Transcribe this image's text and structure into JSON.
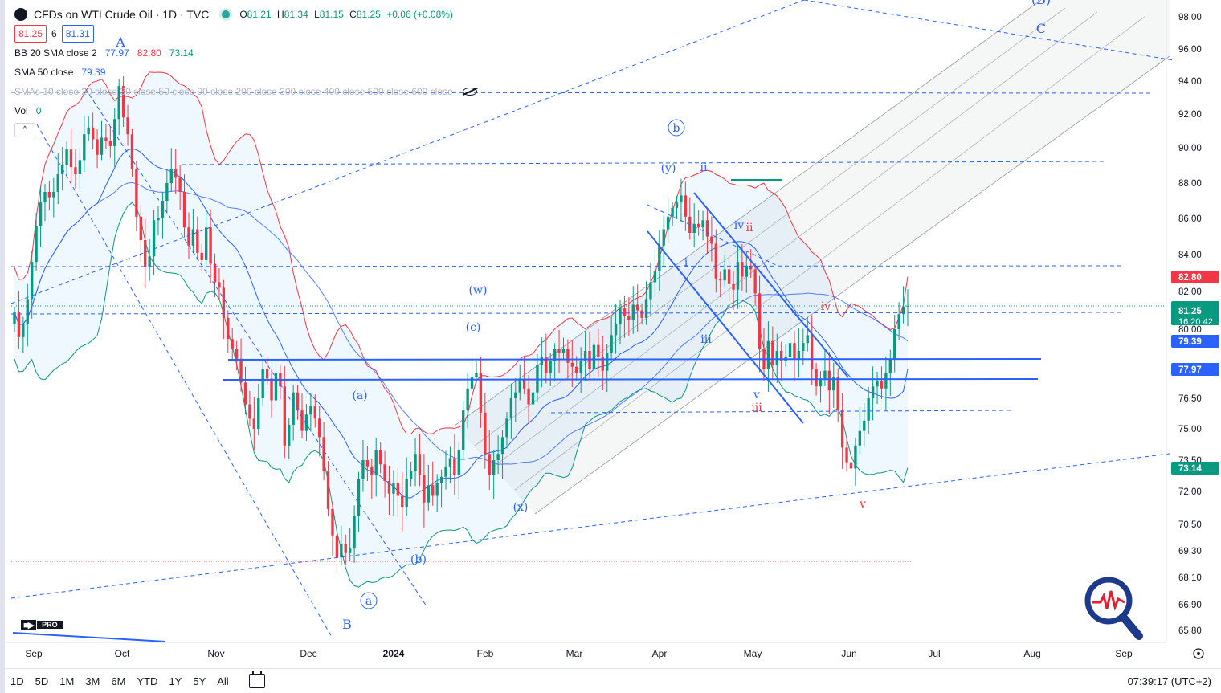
{
  "header": {
    "symbol_title": "CFDs on WTI Crude Oil · 1D · TVC",
    "ohlc": {
      "o_label": "O",
      "o": "81.21",
      "h_label": "H",
      "h": "81.34",
      "l_label": "L",
      "l": "81.15",
      "c_label": "C",
      "c": "81.25",
      "change": "+0.06 (+0.08%)"
    },
    "sell_price": "81.25",
    "spread": "6",
    "buy_price": "81.31"
  },
  "indicators": {
    "bb": {
      "label": "BB 20 SMA close 2",
      "basis": "77.97",
      "upper": "82.80",
      "lower": "73.14"
    },
    "sma50": {
      "label": "SMA 50 close",
      "value": "79.39"
    },
    "smas": {
      "label": "SMAs 10 close 20 close 30 close 50 close 90 close 200 close 300 close 400 close 500 close 600 close"
    },
    "vol": {
      "label": "Vol",
      "value": "0"
    }
  },
  "price_axis": {
    "ticks": [
      "98.00",
      "96.00",
      "94.00",
      "92.00",
      "90.00",
      "88.00",
      "86.00",
      "84.00",
      "82.00",
      "80.00",
      "76.50",
      "75.00",
      "73.50",
      "72.00",
      "70.50",
      "69.30",
      "68.10",
      "66.90",
      "65.80"
    ],
    "badges": [
      {
        "value": "82.80",
        "color": "#f23645"
      },
      {
        "value": "81.25",
        "sub": "16:20:42",
        "color": "#089981"
      },
      {
        "value": "79.39",
        "color": "#2962ff"
      },
      {
        "value": "77.97",
        "color": "#2962ff"
      },
      {
        "value": "73.14",
        "color": "#089981"
      }
    ]
  },
  "time_axis": {
    "labels": [
      "Sep",
      "Oct",
      "Nov",
      "Dec",
      "2024",
      "Feb",
      "Mar",
      "Apr",
      "May",
      "Jun",
      "Jul",
      "Aug",
      "Sep"
    ]
  },
  "wave_labels": [
    {
      "text": "A",
      "color": "#2962ff"
    },
    {
      "text": "B",
      "color": "#2962ff"
    },
    {
      "text": "C",
      "color": "#2962ff"
    },
    {
      "text": "(B)",
      "color": "#2962ff"
    },
    {
      "text": "a",
      "color": "#2962ff",
      "circled": true
    },
    {
      "text": "b",
      "color": "#2962ff",
      "circled": true
    },
    {
      "text": "(a)",
      "color": "#2962ff"
    },
    {
      "text": "(b)",
      "color": "#2962ff"
    },
    {
      "text": "(c)",
      "color": "#2962ff"
    },
    {
      "text": "(w)",
      "color": "#2962ff"
    },
    {
      "text": "(x)",
      "color": "#2962ff"
    },
    {
      "text": "(y)",
      "color": "#2962ff"
    },
    {
      "text": "i",
      "color": "#2962ff"
    },
    {
      "text": "ii",
      "color": "#2962ff"
    },
    {
      "text": "iii",
      "color": "#2962ff"
    },
    {
      "text": "iv",
      "color": "#2962ff"
    },
    {
      "text": "v",
      "color": "#2962ff"
    },
    {
      "text": "ii",
      "color": "#f23645"
    },
    {
      "text": "iii",
      "color": "#f23645"
    },
    {
      "text": "iv",
      "color": "#f23645"
    },
    {
      "text": "v",
      "color": "#f23645"
    }
  ],
  "chart_data": {
    "type": "candlestick",
    "x_range": [
      "2023-08-22",
      "2024-06-21"
    ],
    "ylim": [
      65.8,
      98.0
    ],
    "up_color": "#089981",
    "down_color": "#f23645",
    "closes": [
      80.9,
      79.6,
      80.3,
      81.6,
      83.6,
      85.6,
      86.9,
      87.5,
      87.2,
      87.5,
      88.5,
      89.0,
      89.9,
      88.9,
      88.5,
      89.3,
      90.8,
      91.2,
      90.5,
      89.6,
      90.6,
      90.4,
      90.1,
      91.7,
      93.7,
      91.8,
      90.8,
      88.8,
      86.1,
      84.8,
      83.3,
      83.9,
      85.9,
      86.0,
      87.0,
      88.0,
      88.8,
      88.3,
      87.5,
      85.5,
      84.5,
      85.4,
      84.1,
      83.7,
      85.5,
      83.5,
      82.5,
      82.2,
      80.6,
      79.5,
      79.0,
      78.5,
      77.3,
      76.2,
      75.5,
      75.0,
      76.5,
      78.0,
      77.5,
      76.4,
      77.8,
      77.1,
      74.2,
      75.2,
      76.8,
      75.9,
      74.9,
      75.7,
      76.1,
      75.5,
      74.6,
      73.0,
      71.2,
      70.0,
      69.0,
      69.6,
      69.2,
      69.4,
      70.9,
      72.6,
      73.5,
      73.2,
      72.8,
      74.0,
      73.3,
      72.5,
      71.9,
      72.4,
      71.8,
      71.3,
      72.6,
      73.0,
      73.8,
      72.8,
      71.5,
      72.3,
      71.8,
      72.4,
      72.7,
      73.2,
      73.6,
      72.8,
      74.0,
      75.9,
      77.0,
      77.6,
      77.8,
      75.8,
      73.8,
      72.8,
      73.5,
      73.8,
      74.6,
      75.5,
      76.5,
      76.8,
      77.5,
      77.0,
      76.2,
      76.8,
      78.2,
      78.6,
      77.8,
      78.4,
      79.0,
      78.8,
      79.0,
      78.3,
      78.1,
      77.8,
      78.4,
      78.9,
      78.0,
      79.2,
      78.6,
      77.9,
      78.8,
      79.7,
      80.3,
      81.1,
      80.7,
      80.5,
      81.3,
      81.0,
      80.6,
      81.6,
      82.5,
      83.1,
      84.5,
      85.4,
      86.1,
      86.6,
      86.9,
      87.3,
      86.1,
      85.2,
      85.7,
      85.5,
      85.9,
      85.0,
      84.6,
      82.7,
      82.6,
      83.2,
      82.4,
      82.1,
      83.6,
      82.8,
      83.4,
      83.2,
      81.9,
      79.0,
      78.0,
      79.4,
      78.2,
      78.9,
      78.4,
      78.6,
      79.3,
      78.5,
      78.9,
      79.3,
      79.7,
      78.0,
      77.1,
      77.5,
      77.9,
      76.9,
      77.6,
      75.9,
      74.1,
      73.4,
      73.1,
      74.2,
      74.9,
      75.4,
      76.5,
      77.1,
      77.4,
      77.0,
      77.8,
      78.5,
      80.0,
      80.8,
      81.2,
      81.25
    ],
    "bb_upper_last": 82.8,
    "bb_basis_last": 77.97,
    "bb_lower_last": 73.14,
    "sma50_last": 79.39
  },
  "timeframes": [
    "1D",
    "5D",
    "1M",
    "3M",
    "6M",
    "YTD",
    "1Y",
    "5Y",
    "All"
  ],
  "clock": "07:39:17 (UTC+2)"
}
